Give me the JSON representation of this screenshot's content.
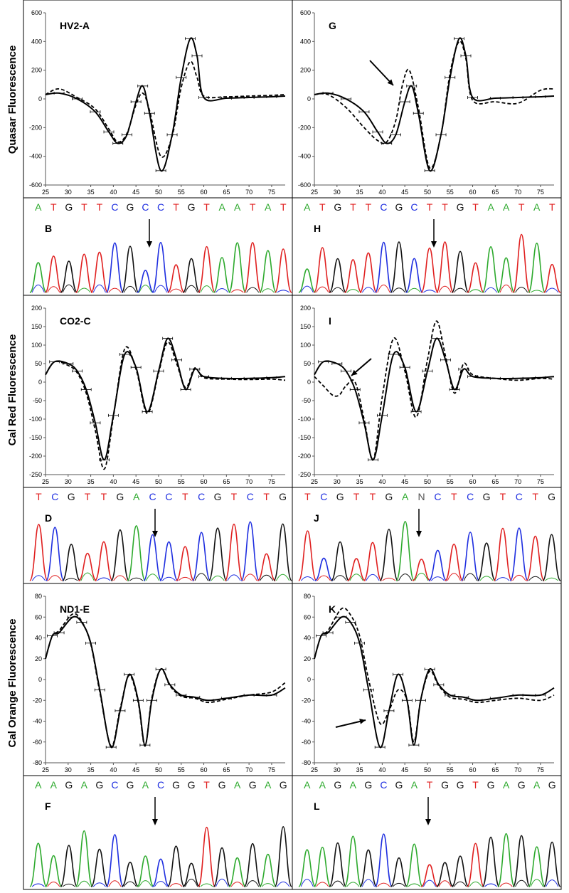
{
  "row_labels": [
    "Quasar Fluorescence",
    "Cal Red Fluorescence",
    "Cal Orange Fluorescence"
  ],
  "base_colors": {
    "A": "#2eaa2e",
    "C": "#1f2fe0",
    "G": "#111111",
    "T": "#e02020",
    "N": "#555555"
  },
  "line_color": "#000000",
  "chart_data": [
    {
      "type": "line",
      "panel": "A",
      "title": "HV2-A",
      "xlim": [
        25,
        78
      ],
      "ylim": [
        -600,
        600
      ],
      "xticks": [
        25,
        30,
        35,
        40,
        45,
        50,
        55,
        60,
        65,
        70,
        75
      ],
      "yticks": [
        600,
        400,
        200,
        0,
        -200,
        -400,
        -600
      ],
      "series": [
        {
          "style": "solid",
          "x": [
            25,
            28,
            32,
            36,
            39,
            41,
            43,
            45,
            46.5,
            48,
            50.5,
            53,
            55,
            57,
            58.5,
            60,
            65,
            70,
            75,
            78
          ],
          "y": [
            30,
            40,
            0,
            -90,
            -230,
            -310,
            -250,
            -20,
            90,
            -100,
            -500,
            -250,
            150,
            420,
            300,
            10,
            5,
            10,
            15,
            20
          ]
        },
        {
          "style": "dashed",
          "x": [
            25,
            28,
            32,
            36,
            39,
            41,
            43,
            45,
            46.5,
            48,
            50.5,
            53,
            55,
            57,
            58.5,
            60,
            65,
            70,
            75,
            78
          ],
          "y": [
            30,
            70,
            10,
            -70,
            -210,
            -300,
            -240,
            -40,
            40,
            -80,
            -400,
            -260,
            80,
            260,
            150,
            20,
            15,
            20,
            25,
            30
          ]
        }
      ]
    },
    {
      "type": "line",
      "panel": "G",
      "title": "G",
      "xlim": [
        25,
        78
      ],
      "ylim": [
        -600,
        600
      ],
      "xticks": [
        25,
        30,
        35,
        40,
        45,
        50,
        55,
        60,
        65,
        70,
        75
      ],
      "yticks": [
        600,
        400,
        200,
        0,
        -200,
        -400,
        -600
      ],
      "series": [
        {
          "style": "solid",
          "x": [
            25,
            28,
            32,
            36,
            39,
            41,
            43,
            45,
            46.5,
            48,
            50.5,
            53,
            55,
            57,
            58.5,
            60,
            65,
            70,
            75,
            78
          ],
          "y": [
            30,
            40,
            0,
            -90,
            -230,
            -310,
            -250,
            -20,
            90,
            -100,
            -500,
            -250,
            150,
            420,
            300,
            10,
            5,
            10,
            15,
            20
          ]
        },
        {
          "style": "dashed",
          "x": [
            25,
            28,
            32,
            36,
            39,
            41,
            43,
            44.5,
            46,
            48,
            50.5,
            53,
            55,
            57,
            58.5,
            60,
            65,
            70,
            75,
            78
          ],
          "y": [
            30,
            30,
            -60,
            -200,
            -290,
            -300,
            -150,
            100,
            200,
            -60,
            -480,
            -250,
            180,
            400,
            280,
            -10,
            -20,
            -30,
            60,
            70
          ]
        }
      ]
    },
    {
      "type": "line",
      "panel": "C",
      "title": "CO2-C",
      "xlim": [
        25,
        78
      ],
      "ylim": [
        -250,
        200
      ],
      "xticks": [
        25,
        30,
        35,
        40,
        45,
        50,
        55,
        60,
        65,
        70,
        75
      ],
      "yticks": [
        200,
        150,
        100,
        50,
        0,
        -50,
        -100,
        -150,
        -200,
        -250
      ],
      "series": [
        {
          "style": "solid",
          "x": [
            25,
            27,
            30,
            32,
            34,
            36,
            38,
            40,
            42.5,
            45,
            47.5,
            50,
            52,
            54,
            56,
            58,
            60,
            65,
            70,
            75,
            78
          ],
          "y": [
            20,
            55,
            50,
            30,
            -20,
            -110,
            -210,
            -90,
            75,
            40,
            -80,
            30,
            118,
            60,
            -20,
            35,
            15,
            10,
            10,
            12,
            15
          ]
        },
        {
          "style": "dashed",
          "x": [
            25,
            27,
            30,
            32,
            34,
            36,
            38,
            40,
            42.5,
            45,
            47.5,
            50,
            52,
            54,
            56,
            58,
            60,
            65,
            70,
            75,
            78
          ],
          "y": [
            20,
            55,
            45,
            25,
            -30,
            -130,
            -235,
            -95,
            90,
            35,
            -85,
            25,
            108,
            50,
            -15,
            38,
            12,
            8,
            7,
            8,
            5
          ]
        }
      ]
    },
    {
      "type": "line",
      "panel": "I",
      "title": "I",
      "xlim": [
        25,
        78
      ],
      "ylim": [
        -250,
        200
      ],
      "xticks": [
        25,
        30,
        35,
        40,
        45,
        50,
        55,
        60,
        65,
        70,
        75
      ],
      "yticks": [
        200,
        150,
        100,
        50,
        0,
        -50,
        -100,
        -150,
        -200,
        -250
      ],
      "series": [
        {
          "style": "solid",
          "x": [
            25,
            27,
            30,
            32,
            34,
            36,
            38,
            40,
            42.5,
            45,
            47.5,
            50,
            52,
            54,
            56,
            58,
            60,
            65,
            70,
            75,
            78
          ],
          "y": [
            20,
            55,
            50,
            30,
            -20,
            -110,
            -210,
            -90,
            75,
            40,
            -80,
            30,
            118,
            60,
            -20,
            35,
            15,
            10,
            10,
            12,
            15
          ]
        },
        {
          "style": "dashed",
          "x": [
            25,
            27,
            29,
            30.5,
            32,
            34,
            36,
            38,
            40,
            42.5,
            45,
            47.5,
            50,
            52,
            54,
            56,
            58,
            60,
            65,
            70,
            75,
            78
          ],
          "y": [
            15,
            -10,
            -35,
            -35,
            -10,
            0,
            -100,
            -210,
            -40,
            118,
            30,
            -95,
            60,
            165,
            70,
            -30,
            50,
            20,
            10,
            5,
            10,
            8
          ]
        }
      ]
    },
    {
      "type": "line",
      "panel": "E",
      "title": "ND1-E",
      "xlim": [
        25,
        78
      ],
      "ylim": [
        -80,
        80
      ],
      "xticks": [
        25,
        30,
        35,
        40,
        45,
        50,
        55,
        60,
        65,
        70,
        75
      ],
      "yticks": [
        80,
        60,
        40,
        20,
        0,
        -20,
        -40,
        -60,
        -80
      ],
      "series": [
        {
          "style": "solid",
          "x": [
            25,
            26.5,
            28,
            31,
            33,
            35,
            37,
            39.5,
            41.5,
            43.5,
            45.5,
            47,
            48.5,
            50.5,
            52.5,
            55,
            58,
            61,
            65,
            70,
            75,
            78
          ],
          "y": [
            20,
            42,
            45,
            60,
            55,
            35,
            -10,
            -65,
            -30,
            5,
            -20,
            -63,
            -20,
            10,
            -5,
            -15,
            -17,
            -20,
            -18,
            -15,
            -15,
            -8
          ]
        },
        {
          "style": "dashed",
          "x": [
            25,
            26.5,
            28,
            31,
            33,
            35,
            37,
            39.5,
            41.5,
            43.5,
            45.5,
            47,
            48.5,
            50.5,
            52.5,
            55,
            58,
            61,
            65,
            70,
            75,
            78
          ],
          "y": [
            20,
            42,
            47,
            63,
            56,
            34,
            -12,
            -64,
            -28,
            4,
            -22,
            -64,
            -18,
            10,
            -6,
            -16,
            -18,
            -22,
            -19,
            -15,
            -12,
            -3
          ]
        }
      ]
    },
    {
      "type": "line",
      "panel": "K",
      "title": "K",
      "xlim": [
        25,
        78
      ],
      "ylim": [
        -80,
        80
      ],
      "xticks": [
        25,
        30,
        35,
        40,
        45,
        50,
        55,
        60,
        65,
        70,
        75
      ],
      "yticks": [
        80,
        60,
        40,
        20,
        0,
        -20,
        -40,
        -60,
        -80
      ],
      "series": [
        {
          "style": "solid",
          "x": [
            25,
            26.5,
            28,
            31,
            33,
            35,
            37,
            39.5,
            41.5,
            43.5,
            45.5,
            47,
            48.5,
            50.5,
            52.5,
            55,
            58,
            61,
            65,
            70,
            75,
            78
          ],
          "y": [
            20,
            42,
            45,
            60,
            55,
            35,
            -10,
            -65,
            -30,
            5,
            -20,
            -63,
            -20,
            10,
            -5,
            -15,
            -17,
            -20,
            -18,
            -15,
            -15,
            -8
          ]
        },
        {
          "style": "dashed",
          "x": [
            25,
            26.5,
            28,
            31,
            33,
            35,
            37,
            39.5,
            41.5,
            43.5,
            45.5,
            47,
            48.5,
            50.5,
            52.5,
            55,
            58,
            61,
            65,
            70,
            75,
            78
          ],
          "y": [
            20,
            42,
            47,
            68,
            62,
            42,
            0,
            -42,
            -30,
            -10,
            -20,
            -60,
            -20,
            8,
            -6,
            -17,
            -19,
            -22,
            -20,
            -18,
            -20,
            -15
          ]
        }
      ]
    }
  ],
  "chromatograms": [
    {
      "panel": "B",
      "label": "B",
      "bases": "ATGTTCGCCTGTAATAT"
    },
    {
      "panel": "H",
      "label": "H",
      "bases": "ATGTTCGCTTGTAATAT"
    },
    {
      "panel": "D",
      "label": "D",
      "bases": "TCGTTGACCTCGTCTG"
    },
    {
      "panel": "J",
      "label": "J",
      "bases": "TCGTTGANCTCGTCTG"
    },
    {
      "panel": "F",
      "label": "F",
      "bases": "AAGAGCGACGGTGAGAG"
    },
    {
      "panel": "L",
      "label": "L",
      "bases": "AAGAGCGATGGTGAGAG"
    }
  ]
}
